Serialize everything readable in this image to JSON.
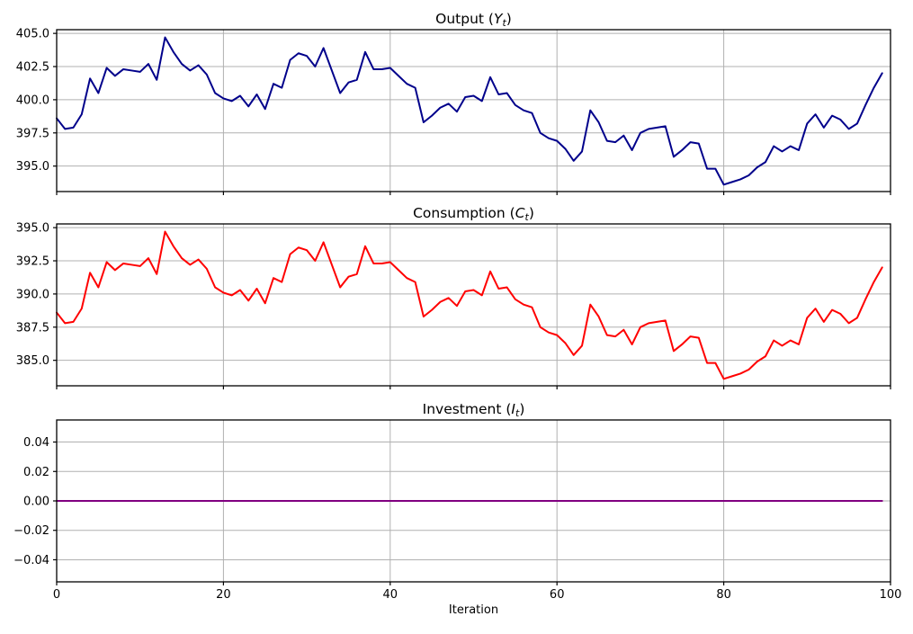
{
  "figure": {
    "background": "#ffffff",
    "x_axis": {
      "label": "Iteration",
      "tick_values": [
        0,
        20,
        40,
        60,
        80,
        100
      ],
      "tick_labels": [
        "0",
        "20",
        "40",
        "60",
        "80",
        "100"
      ],
      "xlim": [
        0,
        100
      ]
    }
  },
  "chart_data": [
    {
      "type": "line",
      "title": "Output (Y_t)",
      "title_parts": {
        "prefix": "Output (",
        "variable": "Y",
        "subscript": "t",
        "suffix": ")"
      },
      "color": "#00008B",
      "grid": true,
      "legend": "none",
      "xlim": [
        0,
        100
      ],
      "ylim": [
        393.08,
        405.28
      ],
      "y_tick_values": [
        395.0,
        397.5,
        400.0,
        402.5,
        405.0
      ],
      "y_tick_labels": [
        "395.0",
        "397.5",
        "400.0",
        "402.5",
        "405.0"
      ],
      "x_start": 0,
      "x_step": 1,
      "values": [
        398.6,
        397.8,
        397.9,
        398.9,
        401.6,
        400.5,
        402.4,
        401.8,
        402.3,
        402.2,
        402.1,
        402.7,
        401.5,
        404.7,
        403.6,
        402.7,
        402.2,
        402.6,
        401.9,
        400.5,
        400.1,
        399.9,
        400.3,
        399.5,
        400.4,
        399.3,
        401.2,
        400.9,
        403.0,
        403.5,
        403.3,
        402.5,
        403.9,
        402.2,
        400.5,
        401.3,
        401.5,
        403.6,
        402.3,
        402.3,
        402.4,
        401.8,
        401.2,
        400.9,
        398.3,
        398.8,
        399.4,
        399.7,
        399.1,
        400.2,
        400.3,
        399.9,
        401.7,
        400.4,
        400.5,
        399.6,
        399.2,
        399.0,
        397.5,
        397.1,
        396.9,
        396.3,
        395.4,
        396.1,
        399.2,
        398.3,
        396.9,
        396.8,
        397.3,
        396.2,
        397.5,
        397.8,
        397.9,
        398.0,
        395.7,
        396.2,
        396.8,
        396.7,
        394.8,
        394.8,
        393.6,
        393.8,
        394.0,
        394.3,
        394.9,
        395.3,
        396.5,
        396.1,
        396.5,
        396.2,
        398.2,
        398.9,
        397.9,
        398.8,
        398.5,
        397.8,
        398.2,
        399.6,
        400.9,
        402.0
      ]
    },
    {
      "type": "line",
      "title": "Consumption (C_t)",
      "title_parts": {
        "prefix": "Consumption (",
        "variable": "C",
        "subscript": "t",
        "suffix": ")"
      },
      "color": "#FF0000",
      "grid": true,
      "legend": "none",
      "xlim": [
        0,
        100
      ],
      "ylim": [
        383.08,
        395.28
      ],
      "y_tick_values": [
        385.0,
        387.5,
        390.0,
        392.5,
        395.0
      ],
      "y_tick_labels": [
        "385.0",
        "387.5",
        "390.0",
        "392.5",
        "395.0"
      ],
      "x_start": 0,
      "x_step": 1,
      "values": [
        388.6,
        387.8,
        387.9,
        388.9,
        391.6,
        390.5,
        392.4,
        391.8,
        392.3,
        392.2,
        392.1,
        392.7,
        391.5,
        394.7,
        393.6,
        392.7,
        392.2,
        392.6,
        391.9,
        390.5,
        390.1,
        389.9,
        390.3,
        389.5,
        390.4,
        389.3,
        391.2,
        390.9,
        393.0,
        393.5,
        393.3,
        392.5,
        393.9,
        392.2,
        390.5,
        391.3,
        391.5,
        393.6,
        392.3,
        392.3,
        392.4,
        391.8,
        391.2,
        390.9,
        388.3,
        388.8,
        389.4,
        389.7,
        389.1,
        390.2,
        390.3,
        389.9,
        391.7,
        390.4,
        390.5,
        389.6,
        389.2,
        389.0,
        387.5,
        387.1,
        386.9,
        386.3,
        385.4,
        386.1,
        389.2,
        388.3,
        386.9,
        386.8,
        387.3,
        386.2,
        387.5,
        387.8,
        387.9,
        388.0,
        385.7,
        386.2,
        386.8,
        386.7,
        384.8,
        384.8,
        383.6,
        383.8,
        384.0,
        384.3,
        384.9,
        385.3,
        386.5,
        386.1,
        386.5,
        386.2,
        388.2,
        388.9,
        387.9,
        388.8,
        388.5,
        387.8,
        388.2,
        389.6,
        390.9,
        392.0
      ]
    },
    {
      "type": "line",
      "title": "Investment (I_t)",
      "title_parts": {
        "prefix": "Investment (",
        "variable": "I",
        "subscript": "t",
        "suffix": ")"
      },
      "color": "#800080",
      "grid": true,
      "legend": "none",
      "xlim": [
        0,
        100
      ],
      "ylim": [
        -0.055,
        0.055
      ],
      "y_tick_values": [
        -0.04,
        -0.02,
        0.0,
        0.02,
        0.04
      ],
      "y_tick_labels": [
        "−0.04",
        "−0.02",
        "0.00",
        "0.02",
        "0.04"
      ],
      "x_start": 0,
      "x_step": 1,
      "values": [
        0.0,
        0.0,
        0.0,
        0.0,
        0.0,
        0.0,
        0.0,
        0.0,
        0.0,
        0.0,
        0.0,
        0.0,
        0.0,
        0.0,
        0.0,
        0.0,
        0.0,
        0.0,
        0.0,
        0.0,
        0.0,
        0.0,
        0.0,
        0.0,
        0.0,
        0.0,
        0.0,
        0.0,
        0.0,
        0.0,
        0.0,
        0.0,
        0.0,
        0.0,
        0.0,
        0.0,
        0.0,
        0.0,
        0.0,
        0.0,
        0.0,
        0.0,
        0.0,
        0.0,
        0.0,
        0.0,
        0.0,
        0.0,
        0.0,
        0.0,
        0.0,
        0.0,
        0.0,
        0.0,
        0.0,
        0.0,
        0.0,
        0.0,
        0.0,
        0.0,
        0.0,
        0.0,
        0.0,
        0.0,
        0.0,
        0.0,
        0.0,
        0.0,
        0.0,
        0.0,
        0.0,
        0.0,
        0.0,
        0.0,
        0.0,
        0.0,
        0.0,
        0.0,
        0.0,
        0.0,
        0.0,
        0.0,
        0.0,
        0.0,
        0.0,
        0.0,
        0.0,
        0.0,
        0.0,
        0.0,
        0.0,
        0.0,
        0.0,
        0.0,
        0.0,
        0.0,
        0.0,
        0.0,
        0.0,
        0.0
      ]
    }
  ],
  "style": {
    "grid_color": "#b0b0b0",
    "spine_color": "#000000",
    "tick_color": "#000000"
  }
}
